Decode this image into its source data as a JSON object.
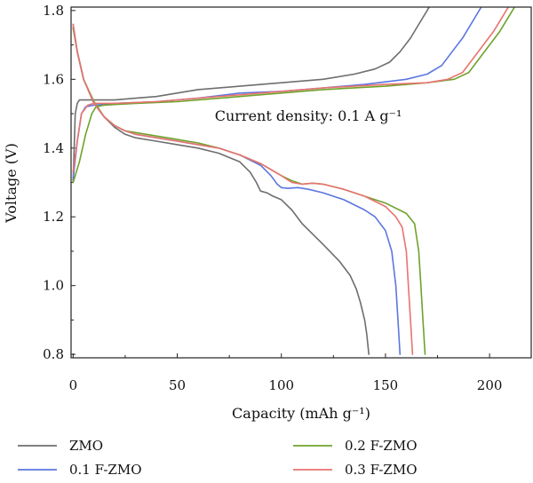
{
  "chart_data": {
    "type": "line",
    "title": "",
    "xlabel": "Capacity (mAh g⁻¹)",
    "ylabel": "Voltage (V)",
    "xlim": [
      -1,
      220
    ],
    "ylim": [
      0.79,
      1.81
    ],
    "xticks": [
      0,
      50,
      100,
      150,
      200
    ],
    "yticks": [
      0.8,
      1.0,
      1.2,
      1.4,
      1.6,
      1.8
    ],
    "annotation": {
      "text": "Current density: 0.1 A g⁻¹",
      "x": 68,
      "y": 1.48
    },
    "legend": {
      "placement": "bottom",
      "columns": 2
    },
    "series": [
      {
        "name": "ZMO",
        "color": "#6e6e6e",
        "charge": [
          [
            0,
            1.3
          ],
          [
            1,
            1.5
          ],
          [
            2,
            1.53
          ],
          [
            3,
            1.54
          ],
          [
            10,
            1.54
          ],
          [
            20,
            1.54
          ],
          [
            30,
            1.545
          ],
          [
            40,
            1.55
          ],
          [
            50,
            1.56
          ],
          [
            60,
            1.57
          ],
          [
            80,
            1.58
          ],
          [
            100,
            1.59
          ],
          [
            120,
            1.6
          ],
          [
            135,
            1.615
          ],
          [
            145,
            1.63
          ],
          [
            152,
            1.65
          ],
          [
            157,
            1.68
          ],
          [
            162,
            1.72
          ],
          [
            166,
            1.76
          ],
          [
            170,
            1.8
          ],
          [
            171,
            1.81
          ]
        ],
        "discharge": [
          [
            0,
            1.75
          ],
          [
            2,
            1.68
          ],
          [
            5,
            1.6
          ],
          [
            10,
            1.53
          ],
          [
            15,
            1.49
          ],
          [
            20,
            1.46
          ],
          [
            25,
            1.44
          ],
          [
            30,
            1.43
          ],
          [
            40,
            1.42
          ],
          [
            50,
            1.41
          ],
          [
            60,
            1.4
          ],
          [
            70,
            1.385
          ],
          [
            80,
            1.36
          ],
          [
            85,
            1.33
          ],
          [
            88,
            1.3
          ],
          [
            90,
            1.275
          ],
          [
            93,
            1.27
          ],
          [
            96,
            1.26
          ],
          [
            100,
            1.25
          ],
          [
            105,
            1.22
          ],
          [
            110,
            1.18
          ],
          [
            120,
            1.12
          ],
          [
            128,
            1.07
          ],
          [
            133,
            1.03
          ],
          [
            136,
            0.99
          ],
          [
            138,
            0.95
          ],
          [
            140,
            0.9
          ],
          [
            141,
            0.86
          ],
          [
            142,
            0.8
          ]
        ]
      },
      {
        "name": "0.1 F-ZMO",
        "color": "#5b76e0",
        "charge": [
          [
            0,
            1.31
          ],
          [
            2,
            1.42
          ],
          [
            4,
            1.5
          ],
          [
            6,
            1.52
          ],
          [
            10,
            1.525
          ],
          [
            20,
            1.53
          ],
          [
            40,
            1.535
          ],
          [
            60,
            1.545
          ],
          [
            80,
            1.56
          ],
          [
            100,
            1.565
          ],
          [
            120,
            1.575
          ],
          [
            140,
            1.585
          ],
          [
            160,
            1.6
          ],
          [
            170,
            1.615
          ],
          [
            177,
            1.64
          ],
          [
            182,
            1.68
          ],
          [
            187,
            1.72
          ],
          [
            192,
            1.77
          ],
          [
            196,
            1.81
          ]
        ],
        "discharge": [
          [
            0,
            1.76
          ],
          [
            2,
            1.68
          ],
          [
            5,
            1.6
          ],
          [
            10,
            1.53
          ],
          [
            15,
            1.49
          ],
          [
            20,
            1.465
          ],
          [
            25,
            1.45
          ],
          [
            30,
            1.44
          ],
          [
            40,
            1.43
          ],
          [
            50,
            1.42
          ],
          [
            60,
            1.41
          ],
          [
            70,
            1.4
          ],
          [
            80,
            1.38
          ],
          [
            90,
            1.35
          ],
          [
            95,
            1.32
          ],
          [
            98,
            1.295
          ],
          [
            100,
            1.285
          ],
          [
            103,
            1.283
          ],
          [
            108,
            1.285
          ],
          [
            113,
            1.28
          ],
          [
            120,
            1.27
          ],
          [
            130,
            1.25
          ],
          [
            140,
            1.22
          ],
          [
            145,
            1.2
          ],
          [
            150,
            1.16
          ],
          [
            153,
            1.1
          ],
          [
            155,
            1.0
          ],
          [
            156,
            0.9
          ],
          [
            157,
            0.8
          ]
        ]
      },
      {
        "name": "0.2 F-ZMO",
        "color": "#6fa22a",
        "charge": [
          [
            0,
            1.3
          ],
          [
            3,
            1.36
          ],
          [
            6,
            1.44
          ],
          [
            9,
            1.5
          ],
          [
            11,
            1.52
          ],
          [
            15,
            1.525
          ],
          [
            30,
            1.53
          ],
          [
            50,
            1.535
          ],
          [
            80,
            1.55
          ],
          [
            100,
            1.56
          ],
          [
            120,
            1.57
          ],
          [
            150,
            1.58
          ],
          [
            170,
            1.59
          ],
          [
            183,
            1.6
          ],
          [
            190,
            1.62
          ],
          [
            195,
            1.66
          ],
          [
            200,
            1.7
          ],
          [
            205,
            1.74
          ],
          [
            209,
            1.78
          ],
          [
            212,
            1.81
          ]
        ],
        "discharge": [
          [
            0,
            1.75
          ],
          [
            2,
            1.68
          ],
          [
            5,
            1.6
          ],
          [
            10,
            1.535
          ],
          [
            15,
            1.49
          ],
          [
            20,
            1.465
          ],
          [
            25,
            1.45
          ],
          [
            30,
            1.445
          ],
          [
            40,
            1.435
          ],
          [
            50,
            1.425
          ],
          [
            60,
            1.415
          ],
          [
            70,
            1.4
          ],
          [
            80,
            1.38
          ],
          [
            90,
            1.355
          ],
          [
            100,
            1.32
          ],
          [
            105,
            1.305
          ],
          [
            110,
            1.295
          ],
          [
            115,
            1.298
          ],
          [
            120,
            1.295
          ],
          [
            130,
            1.28
          ],
          [
            140,
            1.26
          ],
          [
            150,
            1.24
          ],
          [
            160,
            1.21
          ],
          [
            164,
            1.18
          ],
          [
            166,
            1.1
          ],
          [
            167,
            1.0
          ],
          [
            168,
            0.9
          ],
          [
            169,
            0.8
          ]
        ]
      },
      {
        "name": "0.3 F-ZMO",
        "color": "#e87370",
        "charge": [
          [
            0,
            1.33
          ],
          [
            2,
            1.42
          ],
          [
            4,
            1.5
          ],
          [
            7,
            1.525
          ],
          [
            10,
            1.53
          ],
          [
            20,
            1.53
          ],
          [
            40,
            1.535
          ],
          [
            60,
            1.545
          ],
          [
            80,
            1.555
          ],
          [
            100,
            1.565
          ],
          [
            120,
            1.575
          ],
          [
            150,
            1.585
          ],
          [
            170,
            1.59
          ],
          [
            180,
            1.6
          ],
          [
            187,
            1.62
          ],
          [
            192,
            1.66
          ],
          [
            197,
            1.7
          ],
          [
            202,
            1.74
          ],
          [
            206,
            1.78
          ],
          [
            209,
            1.81
          ]
        ],
        "discharge": [
          [
            0,
            1.76
          ],
          [
            2,
            1.68
          ],
          [
            5,
            1.6
          ],
          [
            10,
            1.53
          ],
          [
            15,
            1.49
          ],
          [
            20,
            1.465
          ],
          [
            25,
            1.45
          ],
          [
            30,
            1.44
          ],
          [
            40,
            1.43
          ],
          [
            50,
            1.42
          ],
          [
            60,
            1.41
          ],
          [
            70,
            1.4
          ],
          [
            80,
            1.38
          ],
          [
            90,
            1.355
          ],
          [
            100,
            1.32
          ],
          [
            105,
            1.3
          ],
          [
            110,
            1.295
          ],
          [
            115,
            1.298
          ],
          [
            120,
            1.295
          ],
          [
            130,
            1.28
          ],
          [
            140,
            1.26
          ],
          [
            150,
            1.23
          ],
          [
            155,
            1.2
          ],
          [
            158,
            1.17
          ],
          [
            160,
            1.1
          ],
          [
            161,
            1.0
          ],
          [
            162,
            0.9
          ],
          [
            163,
            0.8
          ]
        ]
      }
    ]
  }
}
